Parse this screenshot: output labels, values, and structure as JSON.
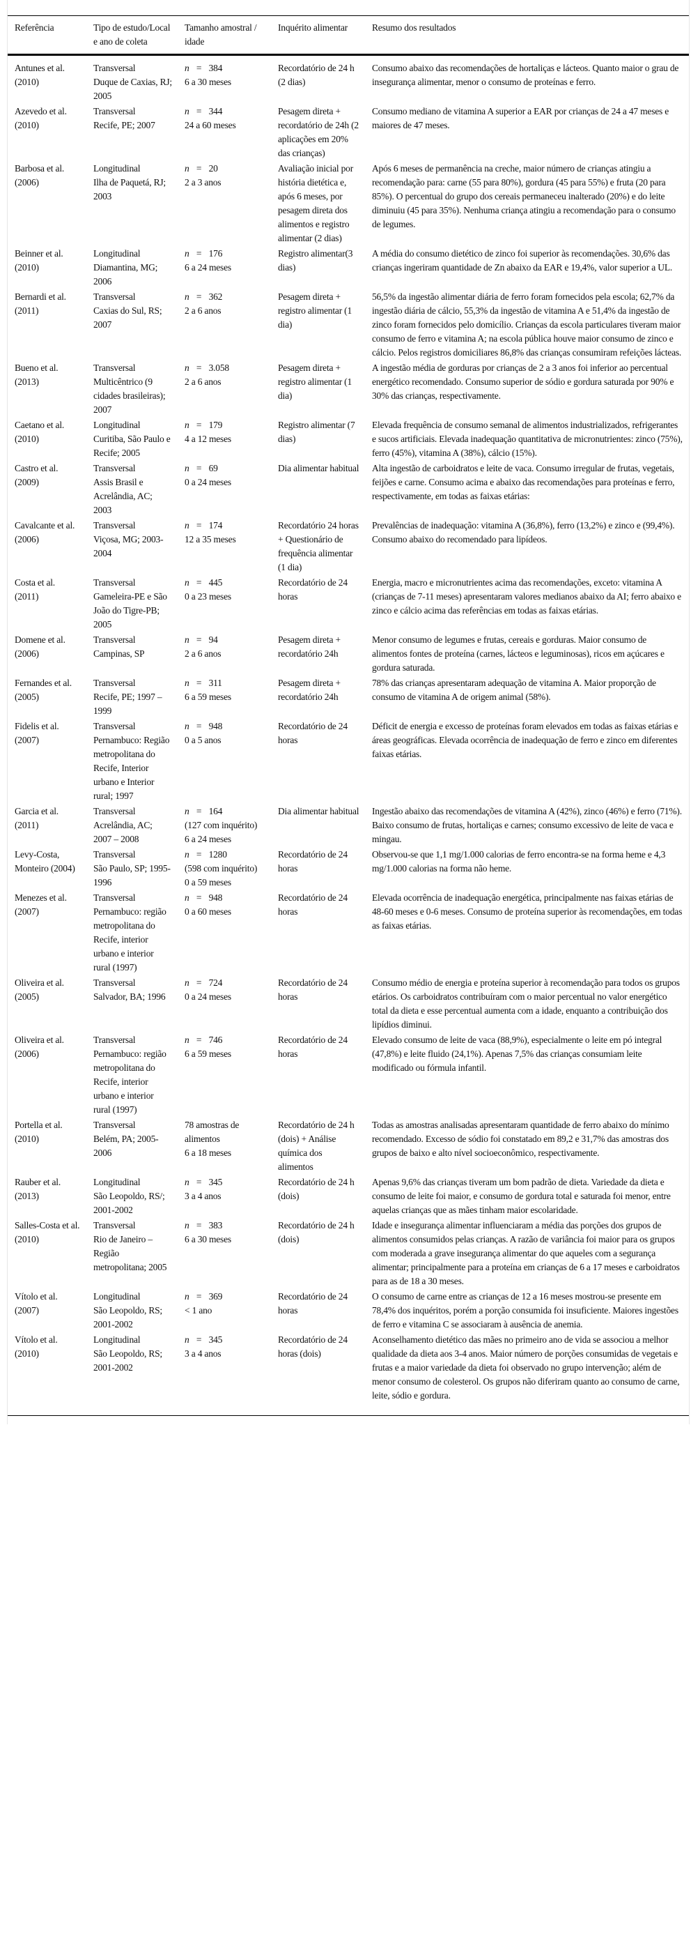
{
  "headers": [
    "Referência",
    "Tipo de estudo/Local e ano de coleta",
    "Tamanho amostral / idade",
    "Inquérito alimentar",
    "Resumo dos resultados"
  ],
  "n_symbol": "n",
  "eq": "=",
  "rows": [
    {
      "ref": "Antunes et al. (2010)",
      "tipo": "Transversal",
      "local": "Duque de Caxias, RJ; 2005",
      "n": "384",
      "idade": "6 a 30 meses",
      "inquerito": "Recordatório de 24 h (2 dias)",
      "resumo": "Consumo abaixo das recomendações de hortaliças e lácteos. Quanto maior o grau de insegurança alimentar, menor o consumo de proteínas e ferro."
    },
    {
      "ref": "Azevedo et al. (2010)",
      "tipo": "Transversal",
      "local": "Recife, PE; 2007",
      "n": "344",
      "idade": "24 a 60 meses",
      "inquerito": "Pesagem direta + recordatório de 24h (2 aplicações em 20% das crianças)",
      "resumo": "Consumo mediano de vitamina A superior a EAR por crianças de 24 a 47 meses e maiores de 47 meses."
    },
    {
      "ref": "Barbosa et al. (2006)",
      "tipo": "Longitudinal",
      "local": "Ilha de Paquetá, RJ; 2003",
      "n": "20",
      "idade": "2 a 3 anos",
      "inquerito": "Avaliação inicial por história dietética e, após 6 meses, por pesagem direta dos alimentos e registro alimentar (2 dias)",
      "resumo": "Após 6 meses de permanência na creche, maior número de crianças atingiu a recomendação para: carne (55 para 80%), gordura (45 para 55%) e fruta (20 para 85%). O percentual do grupo dos cereais permaneceu inalterado (20%) e do leite diminuiu (45 para 35%). Nenhuma criança atingiu a recomendação para o consumo de legumes."
    },
    {
      "ref": "Beinner et al. (2010)",
      "tipo": "Longitudinal",
      "local": "Diamantina, MG; 2006",
      "n": "176",
      "idade": "6 a 24 meses",
      "inquerito": "Registro alimentar(3 dias)",
      "resumo": "A média do consumo dietético de zinco foi superior às recomendações. 30,6% das crianças ingeriram quantidade de Zn abaixo da EAR e 19,4%, valor superior a UL."
    },
    {
      "ref": "Bernardi et al. (2011)",
      "tipo": "Transversal",
      "local": "Caxias do Sul, RS; 2007",
      "n": "362",
      "idade": "2 a 6 anos",
      "inquerito": "Pesagem direta + registro alimentar (1 dia)",
      "resumo": "56,5% da ingestão alimentar diária de ferro foram fornecidos pela escola; 62,7% da ingestão diária de cálcio, 55,3% da ingestão de vitamina A e 51,4% da ingestão de zinco foram fornecidos pelo domicílio. Crianças da escola particulares tiveram maior consumo de ferro e vitamina A; na escola pública houve maior consumo de zinco e cálcio. Pelos registros domiciliares 86,8% das crianças consumiram refeições lácteas."
    },
    {
      "ref": "Bueno et al. (2013)",
      "tipo": "Transversal",
      "local": "Multicêntrico (9 cidades brasileiras); 2007",
      "n": "3.058",
      "idade": "2 a 6 anos",
      "inquerito": "Pesagem direta + registro alimentar (1 dia)",
      "resumo": "A ingestão média de gorduras por crianças de 2 a 3 anos foi inferior ao percentual energético recomendado. Consumo superior de sódio e gordura saturada por 90% e 30% das crianças, respectivamente."
    },
    {
      "ref": "Caetano et al. (2010)",
      "tipo": "Longitudinal",
      "local": "Curitiba, São Paulo e Recife; 2005",
      "n": "179",
      "idade": "4 a 12 meses",
      "inquerito": "Registro alimentar (7 dias)",
      "resumo": "Elevada frequência de consumo semanal de alimentos industrializados, refrigerantes e sucos artificiais. Elevada inadequação quantitativa de micronutrientes: zinco (75%), ferro (45%), vitamina A (38%), cálcio (15%)."
    },
    {
      "ref": "Castro et al. (2009)",
      "tipo": "Transversal",
      "local": "Assis Brasil e Acrelândia, AC; 2003",
      "n": "69",
      "idade": "0 a 24 meses",
      "inquerito": "Dia alimentar habitual",
      "resumo": "Alta ingestão de carboidratos e leite de vaca. Consumo irregular de frutas, vegetais, feijões e carne. Consumo acima e abaixo das recomendações para proteínas e ferro, respectivamente, em todas as faixas etárias:"
    },
    {
      "ref": "Cavalcante et al. (2006)",
      "tipo": "Transversal",
      "local": "Viçosa, MG; 2003-2004",
      "n": "174",
      "idade": "12 a 35 meses",
      "inquerito": "Recordatório 24 horas + Questionário de frequência alimentar (1 dia)",
      "resumo": "Prevalências de inadequação: vitamina A (36,8%), ferro (13,2%) e zinco e (99,4%). Consumo abaixo do recomendado para lipídeos."
    },
    {
      "ref": "Costa et al. (2011)",
      "tipo": "Transversal",
      "local": "Gameleira-PE e São João do Tigre-PB; 2005",
      "n": "445",
      "idade": "0 a 23 meses",
      "inquerito": "Recordatório de 24 horas",
      "resumo": "Energia, macro e micronutrientes acima das recomendações, exceto: vitamina A (crianças de 7-11 meses) apresentaram valores medianos abaixo da AI; ferro abaixo e zinco e cálcio acima das referências em todas as faixas etárias."
    },
    {
      "ref": "Domene et al. (2006)",
      "tipo": "Transversal",
      "local": "Campinas, SP",
      "n": "94",
      "idade": "2 a 6 anos",
      "inquerito": "Pesagem direta + recordatório 24h",
      "resumo": "Menor consumo de legumes e frutas, cereais e gorduras. Maior consumo de alimentos fontes de proteína (carnes, lácteos e leguminosas), ricos em açúcares e gordura saturada."
    },
    {
      "ref": "Fernandes et al. (2005)",
      "tipo": "Transversal",
      "local": "Recife, PE; 1997 – 1999",
      "n": "311",
      "idade": "6 a 59 meses",
      "inquerito": "Pesagem direta + recordatório 24h",
      "resumo": "78% das crianças apresentaram adequação de vitamina A. Maior proporção de consumo de vitamina A de origem animal (58%)."
    },
    {
      "ref": "Fidelis et al. (2007)",
      "tipo": "Transversal",
      "local": "Pernambuco: Região metropolitana do Recife, Interior urbano e Interior rural; 1997",
      "n": "948",
      "idade": "0 a 5 anos",
      "inquerito": "Recordatório de 24 horas",
      "resumo": "Déficit de energia e excesso de proteínas foram elevados em todas as faixas etárias e áreas geográficas. Elevada ocorrência de inadequação de ferro e zinco em diferentes faixas etárias."
    },
    {
      "ref": "Garcia et al. (2011)",
      "tipo": "Transversal",
      "local": "Acrelândia, AC; 2007 – 2008",
      "n": "164",
      "n_note": "(127 com inquérito)",
      "idade": "6 a 24 meses",
      "inquerito": "Dia alimentar habitual",
      "resumo": "Ingestão abaixo das recomendações de vitamina A (42%), zinco (46%) e ferro (71%). Baixo consumo de frutas, hortaliças e carnes; consumo excessivo de leite de vaca e mingau."
    },
    {
      "ref": "Levy-Costa, Monteiro (2004)",
      "tipo": "Transversal",
      "local": "São Paulo, SP; 1995-1996",
      "n": "1280",
      "n_note": "(598 com inquérito)",
      "idade": "0 a 59 meses",
      "inquerito": "Recordatório de 24 horas",
      "resumo": "Observou-se que 1,1 mg/1.000 calorias de ferro encontra-se na forma heme e 4,3 mg/1.000 calorias na forma não heme."
    },
    {
      "ref": "Menezes et al. (2007)",
      "tipo": "Transversal",
      "local": "Pernambuco: região metropolitana do Recife, interior urbano e interior rural (1997)",
      "n": "948",
      "idade": "0 a 60 meses",
      "inquerito": "Recordatório de 24 horas",
      "resumo": "Elevada ocorrência de inadequação energética, principalmente nas faixas etárias de 48-60 meses e 0-6 meses. Consumo de proteína superior às recomendações, em todas as faixas etárias."
    },
    {
      "ref": "Oliveira et al. (2005)",
      "tipo": "Transversal",
      "local": "Salvador, BA; 1996",
      "n": "724",
      "idade": "0 a 24 meses",
      "inquerito": "Recordatório de 24 horas",
      "resumo": "Consumo médio de energia e proteína superior à recomendação para todos os grupos etários. Os carboidratos contribuíram com o maior percentual no valor energético total da dieta e esse percentual aumenta com a idade, enquanto a contribuição dos lipídios diminui."
    },
    {
      "ref": "Oliveira et al. (2006)",
      "tipo": "Transversal",
      "local": "Pernambuco: região metropolitana do Recife, interior urbano e interior rural (1997)",
      "n": "746",
      "idade": "6 a 59 meses",
      "inquerito": "Recordatório de 24 horas",
      "resumo": "Elevado consumo de leite de vaca (88,9%), especialmente o leite em pó integral (47,8%) e leite fluido (24,1%). Apenas 7,5% das crianças consumiam leite modificado ou fórmula infantil."
    },
    {
      "ref": "Portella et al. (2010)",
      "tipo": "Transversal",
      "local": "Belém, PA; 2005-2006",
      "sample": "78 amostras de alimentos",
      "idade": "6 a 18 meses",
      "inquerito": "Recordatório de 24 h (dois) + Análise química dos alimentos",
      "resumo": "Todas as amostras analisadas apresentaram quantidade de ferro abaixo do mínimo recomendado. Excesso de sódio foi constatado em 89,2 e 31,7% das amostras dos grupos de baixo e alto nível socioeconômico, respectivamente."
    },
    {
      "ref": "Rauber et al. (2013)",
      "tipo": "Longitudinal",
      "local": "São Leopoldo, RS/; 2001-2002",
      "n": "345",
      "idade": "3 a 4 anos",
      "inquerito": "Recordatório de 24 h (dois)",
      "resumo": "Apenas 9,6% das crianças tiveram um bom padrão de dieta. Variedade da dieta e consumo de leite foi maior, e consumo de gordura total e saturada foi menor, entre aquelas crianças que as mães tinham maior escolaridade."
    },
    {
      "ref": "Salles-Costa et al. (2010)",
      "tipo": "Transversal",
      "local": "Rio de Janeiro – Região metropolitana; 2005",
      "n": "383",
      "idade": "6 a 30 meses",
      "inquerito": "Recordatório de 24 h (dois)",
      "resumo": "Idade e insegurança alimentar influenciaram a média das porções dos grupos de alimentos consumidos pelas crianças. A razão de variância foi maior para os grupos com moderada a grave insegurança alimentar do que aqueles com a segurança alimentar; principalmente para a proteína em crianças de 6 a 17 meses e carboidratos para as de 18 a 30 meses."
    },
    {
      "ref": "Vítolo et al. (2007)",
      "tipo": "Longitudinal",
      "local": "São Leopoldo, RS; 2001-2002",
      "n": "369",
      "idade": "< 1 ano",
      "inquerito": "Recordatório de 24 horas",
      "resumo": "O consumo de carne entre as crianças de 12 a 16 meses mostrou-se presente em 78,4% dos inquéritos, porém a porção consumida foi insuficiente. Maiores ingestões de ferro e vitamina C se associaram à ausência de anemia."
    },
    {
      "ref": "Vítolo et al. (2010)",
      "tipo": "Longitudinal",
      "local": "São Leopoldo, RS; 2001-2002",
      "n": "345",
      "idade": "3 a 4 anos",
      "inquerito": "Recordatório de 24 horas (dois)",
      "resumo": "Aconselhamento dietético das mães no primeiro ano de vida se associou a melhor qualidade da dieta aos 3-4 anos. Maior número de porções consumidas de vegetais e frutas e a maior variedade da dieta foi observado no grupo intervenção; além de menor consumo de colesterol. Os grupos não diferiram quanto ao consumo de carne, leite, sódio e gordura."
    }
  ]
}
